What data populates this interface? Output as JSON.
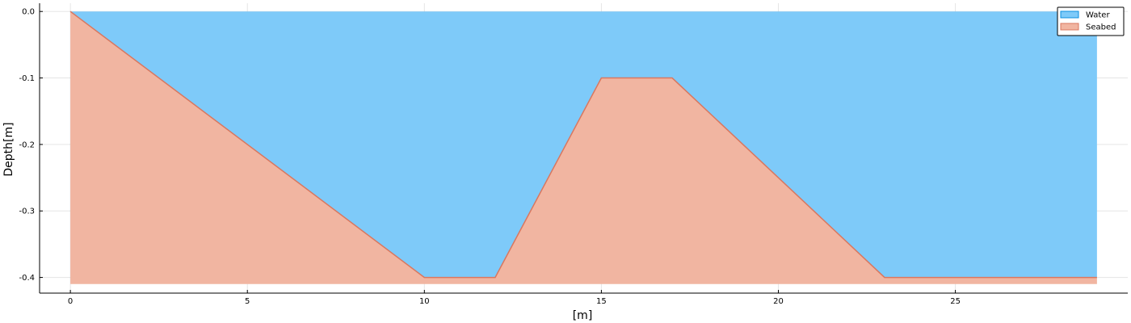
{
  "chart_data": {
    "type": "area",
    "title": "",
    "xlabel": "[m]",
    "ylabel": "Depth[m]",
    "xlim": [
      -0.87,
      29.87
    ],
    "ylim": [
      -0.4236,
      0.0124
    ],
    "xticks": [
      0,
      5,
      10,
      15,
      20,
      25
    ],
    "yticks": [
      0.0,
      -0.1,
      -0.2,
      -0.3,
      -0.4
    ],
    "xtick_labels": [
      "0",
      "5",
      "10",
      "15",
      "20",
      "25"
    ],
    "ytick_labels": [
      "0.0",
      "-0.1",
      "-0.2",
      "-0.3",
      "-0.4"
    ],
    "grid": true,
    "legend_position": "top-right",
    "series": [
      {
        "name": "Water",
        "color": "#7ecaf9",
        "edge_color": "#0a8fe0",
        "fill_between": [
          0.0,
          "Seabed"
        ],
        "x": [
          0,
          29
        ]
      },
      {
        "name": "Seabed",
        "color": "#f1b5a1",
        "line_color": "#d9775f",
        "fill_bottom": -0.41,
        "x": [
          0,
          10,
          12,
          15,
          17,
          23,
          29
        ],
        "y": [
          0.0,
          -0.4,
          -0.4,
          -0.1,
          -0.1,
          -0.4,
          -0.4
        ]
      }
    ]
  }
}
